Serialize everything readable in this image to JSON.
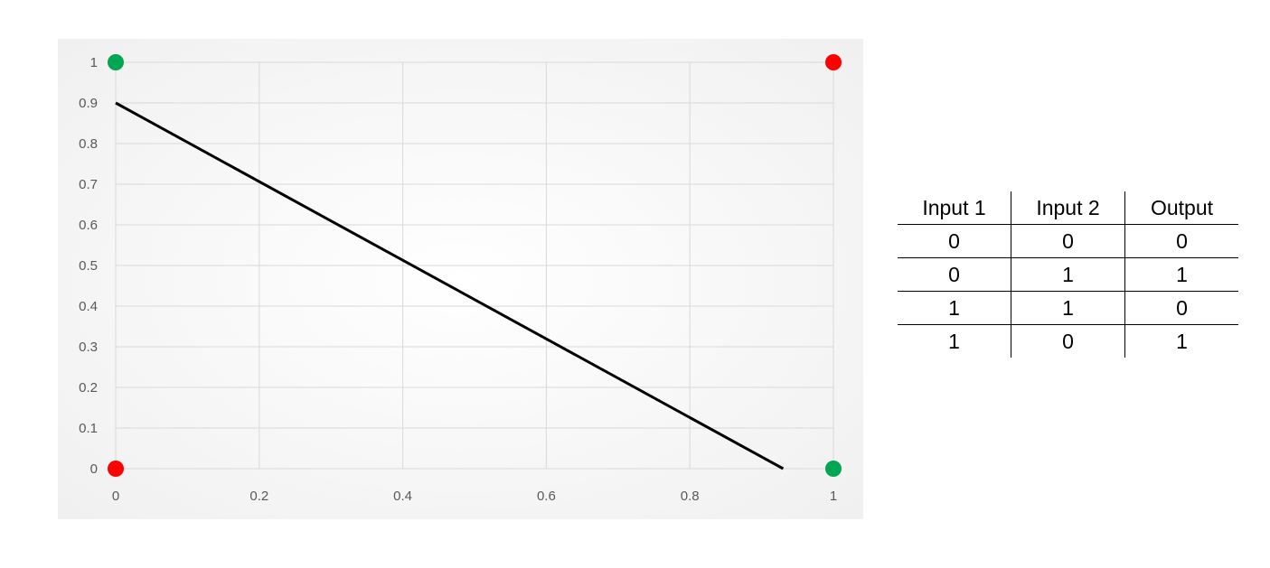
{
  "chart_data": {
    "type": "scatter",
    "title": "",
    "xlabel": "",
    "ylabel": "",
    "xlim": [
      0,
      1
    ],
    "ylim": [
      0,
      1
    ],
    "grid": true,
    "x_ticks": [
      "0",
      "0.2",
      "0.4",
      "0.6",
      "0.8",
      "1"
    ],
    "y_ticks": [
      "0",
      "0.1",
      "0.2",
      "0.3",
      "0.4",
      "0.5",
      "0.6",
      "0.7",
      "0.8",
      "0.9",
      "1"
    ],
    "points": [
      {
        "x": 0,
        "y": 1,
        "color": "#00A651"
      },
      {
        "x": 1,
        "y": 1,
        "color": "#FF0000"
      },
      {
        "x": 0,
        "y": 0,
        "color": "#FF0000"
      },
      {
        "x": 1,
        "y": 0,
        "color": "#00A651"
      }
    ],
    "line": {
      "x": [
        0,
        0.93
      ],
      "y": [
        0.9,
        0
      ],
      "color": "#000000"
    },
    "colors": {
      "green": "#00A651",
      "red": "#FF0000",
      "grid": "#D9D9D9",
      "line": "#000000"
    }
  },
  "table": {
    "headers": [
      "Input 1",
      "Input 2",
      "Output"
    ],
    "rows": [
      [
        "0",
        "0",
        "0"
      ],
      [
        "0",
        "1",
        "1"
      ],
      [
        "1",
        "1",
        "0"
      ],
      [
        "1",
        "0",
        "1"
      ]
    ]
  }
}
